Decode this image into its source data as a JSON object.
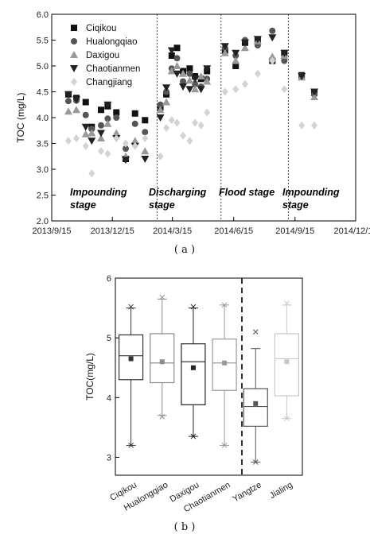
{
  "panel_labels": {
    "a": "( a )",
    "b": "( b )"
  },
  "colors": {
    "Ciqikou": "#111111",
    "Hualongqiao": "#555555",
    "Daxigou": "#999999",
    "Chaotianmen": "#222222",
    "Changjiang": "#d3d3d3"
  },
  "chart_data": [
    {
      "type": "scatter",
      "title": "",
      "xlabel": "",
      "ylabel": "TOC (mg/L)",
      "ylim": [
        2.0,
        6.0
      ],
      "yticks": [
        "2.0",
        "2.5",
        "3.0",
        "3.5",
        "4.0",
        "4.5",
        "5.0",
        "5.5",
        "6.0"
      ],
      "xlim": [
        "2013-09-15",
        "2014-12-15"
      ],
      "xticks": [
        "2013/9/15",
        "2013/12/15",
        "2014/3/15",
        "2014/6/15",
        "2014/9/15",
        "2014/12/15"
      ],
      "grid": false,
      "legend_position": "top-left",
      "stage_dividers": [
        "2014-02-20",
        "2014-05-27",
        "2014-09-05"
      ],
      "stages": [
        {
          "line1": "Impounding",
          "line2": "stage"
        },
        {
          "line1": "Discharging",
          "line2": "stage"
        },
        {
          "line1": "Flood stage",
          "line2": ""
        },
        {
          "line1": "Impounding",
          "line2": "stage"
        }
      ],
      "series": [
        {
          "name": "Ciqikou",
          "marker": "square",
          "points": [
            [
              "2013-10-10",
              4.45
            ],
            [
              "2013-10-22",
              4.38
            ],
            [
              "2013-11-05",
              4.3
            ],
            [
              "2013-11-14",
              3.82
            ],
            [
              "2013-11-28",
              4.15
            ],
            [
              "2013-12-08",
              4.22
            ],
            [
              "2013-12-21",
              4.1
            ],
            [
              "2014-01-04",
              3.2
            ],
            [
              "2014-01-18",
              4.08
            ],
            [
              "2014-02-02",
              3.95
            ],
            [
              "2014-02-25",
              4.2
            ],
            [
              "2014-03-06",
              4.45
            ],
            [
              "2014-03-14",
              5.2
            ],
            [
              "2014-03-22",
              5.35
            ],
            [
              "2014-03-31",
              4.9
            ],
            [
              "2014-04-10",
              4.95
            ],
            [
              "2014-04-18",
              4.8
            ],
            [
              "2014-04-27",
              4.75
            ],
            [
              "2014-05-06",
              4.9
            ],
            [
              "2014-06-02",
              5.3
            ],
            [
              "2014-06-18",
              5.0
            ],
            [
              "2014-07-02",
              5.45
            ],
            [
              "2014-07-21",
              5.5
            ],
            [
              "2014-08-12",
              5.1
            ],
            [
              "2014-08-30",
              5.25
            ],
            [
              "2014-09-25",
              4.82
            ],
            [
              "2014-10-14",
              4.48
            ]
          ]
        },
        {
          "name": "Hualongqiao",
          "marker": "circle",
          "points": [
            [
              "2013-10-10",
              4.32
            ],
            [
              "2013-10-22",
              4.33
            ],
            [
              "2013-11-05",
              4.05
            ],
            [
              "2013-11-14",
              3.78
            ],
            [
              "2013-11-28",
              3.85
            ],
            [
              "2013-12-08",
              3.98
            ],
            [
              "2013-12-21",
              4.0
            ],
            [
              "2014-01-04",
              3.4
            ],
            [
              "2014-01-18",
              3.88
            ],
            [
              "2014-02-02",
              3.72
            ],
            [
              "2014-02-25",
              4.25
            ],
            [
              "2014-03-06",
              4.5
            ],
            [
              "2014-03-14",
              4.95
            ],
            [
              "2014-03-22",
              5.15
            ],
            [
              "2014-03-31",
              4.7
            ],
            [
              "2014-04-10",
              4.85
            ],
            [
              "2014-04-18",
              4.65
            ],
            [
              "2014-04-27",
              4.6
            ],
            [
              "2014-05-06",
              4.75
            ],
            [
              "2014-06-02",
              5.35
            ],
            [
              "2014-06-18",
              5.2
            ],
            [
              "2014-07-02",
              5.5
            ],
            [
              "2014-07-21",
              5.4
            ],
            [
              "2014-08-12",
              5.68
            ],
            [
              "2014-08-30",
              5.1
            ],
            [
              "2014-09-25",
              4.8
            ],
            [
              "2014-10-14",
              4.45
            ]
          ]
        },
        {
          "name": "Daxigou",
          "marker": "triangle-up",
          "points": [
            [
              "2013-10-10",
              4.12
            ],
            [
              "2013-10-22",
              4.15
            ],
            [
              "2013-11-05",
              3.68
            ],
            [
              "2013-11-14",
              3.7
            ],
            [
              "2013-11-28",
              3.6
            ],
            [
              "2013-12-08",
              3.88
            ],
            [
              "2013-12-21",
              3.7
            ],
            [
              "2014-01-04",
              3.25
            ],
            [
              "2014-01-18",
              3.55
            ],
            [
              "2014-02-02",
              3.35
            ],
            [
              "2014-02-25",
              4.15
            ],
            [
              "2014-03-06",
              4.3
            ],
            [
              "2014-03-14",
              4.9
            ],
            [
              "2014-03-22",
              5.0
            ],
            [
              "2014-03-31",
              4.85
            ],
            [
              "2014-04-10",
              4.72
            ],
            [
              "2014-04-18",
              4.55
            ],
            [
              "2014-04-27",
              4.8
            ],
            [
              "2014-05-06",
              4.7
            ],
            [
              "2014-06-02",
              5.25
            ],
            [
              "2014-06-18",
              5.1
            ],
            [
              "2014-07-02",
              5.35
            ],
            [
              "2014-07-21",
              5.48
            ],
            [
              "2014-08-12",
              5.18
            ],
            [
              "2014-08-30",
              5.2
            ],
            [
              "2014-09-25",
              4.78
            ],
            [
              "2014-10-14",
              4.4
            ]
          ]
        },
        {
          "name": "Chaotianmen",
          "marker": "triangle-down",
          "points": [
            [
              "2013-10-10",
              4.45
            ],
            [
              "2013-10-22",
              4.35
            ],
            [
              "2013-11-05",
              3.82
            ],
            [
              "2013-11-14",
              3.55
            ],
            [
              "2013-11-28",
              3.7
            ],
            [
              "2013-12-08",
              4.25
            ],
            [
              "2013-12-21",
              3.6
            ],
            [
              "2014-01-04",
              3.18
            ],
            [
              "2014-01-18",
              3.45
            ],
            [
              "2014-02-02",
              3.2
            ],
            [
              "2014-02-25",
              4.0
            ],
            [
              "2014-03-06",
              4.58
            ],
            [
              "2014-03-14",
              5.3
            ],
            [
              "2014-03-22",
              4.85
            ],
            [
              "2014-03-31",
              4.6
            ],
            [
              "2014-04-10",
              4.55
            ],
            [
              "2014-04-18",
              4.75
            ],
            [
              "2014-04-27",
              4.55
            ],
            [
              "2014-05-06",
              4.95
            ],
            [
              "2014-06-02",
              5.38
            ],
            [
              "2014-06-18",
              5.25
            ],
            [
              "2014-07-02",
              5.45
            ],
            [
              "2014-07-21",
              5.52
            ],
            [
              "2014-08-12",
              5.55
            ],
            [
              "2014-08-30",
              5.25
            ],
            [
              "2014-09-25",
              4.8
            ],
            [
              "2014-10-14",
              4.5
            ]
          ]
        },
        {
          "name": "Changjiang",
          "marker": "diamond",
          "points": [
            [
              "2013-10-10",
              3.55
            ],
            [
              "2013-10-22",
              3.6
            ],
            [
              "2013-11-05",
              3.45
            ],
            [
              "2013-11-14",
              2.92
            ],
            [
              "2013-11-28",
              3.35
            ],
            [
              "2013-12-08",
              3.3
            ],
            [
              "2013-12-21",
              3.6
            ],
            [
              "2014-01-04",
              3.5
            ],
            [
              "2014-01-18",
              3.45
            ],
            [
              "2014-02-02",
              3.6
            ],
            [
              "2014-02-25",
              3.25
            ],
            [
              "2014-03-06",
              3.8
            ],
            [
              "2014-03-14",
              3.95
            ],
            [
              "2014-03-22",
              3.9
            ],
            [
              "2014-03-31",
              3.65
            ],
            [
              "2014-04-10",
              3.55
            ],
            [
              "2014-04-18",
              3.9
            ],
            [
              "2014-04-27",
              3.85
            ],
            [
              "2014-05-06",
              4.1
            ],
            [
              "2014-06-02",
              4.5
            ],
            [
              "2014-06-18",
              4.55
            ],
            [
              "2014-07-02",
              4.65
            ],
            [
              "2014-07-21",
              4.85
            ],
            [
              "2014-08-12",
              5.1
            ],
            [
              "2014-08-30",
              4.55
            ],
            [
              "2014-09-25",
              3.85
            ],
            [
              "2014-10-14",
              3.85
            ]
          ]
        }
      ]
    },
    {
      "type": "box",
      "title": "",
      "xlabel": "",
      "ylabel": "TOC(mg/L)",
      "ylim": [
        2.7,
        6.0
      ],
      "yticks": [
        "3",
        "4",
        "5",
        "6"
      ],
      "grid": false,
      "divider_after_category": "Chaotianmen",
      "categories": [
        "Ciqikou",
        "Hualongqiao",
        "Daxigou",
        "Chaotianmen",
        "Yangtze",
        "Jialing"
      ],
      "series": [
        {
          "name": "Ciqikou",
          "color": "#333333",
          "min": 3.2,
          "q1": 4.3,
          "median": 4.7,
          "q3": 5.05,
          "max": 5.5,
          "mean": 4.65,
          "outliers_high": [
            5.52
          ],
          "outliers_low": [
            3.2
          ]
        },
        {
          "name": "Hualongqiao",
          "color": "#8c8c8c",
          "min": 3.7,
          "q1": 4.25,
          "median": 4.58,
          "q3": 5.07,
          "max": 5.65,
          "mean": 4.6,
          "outliers_high": [
            5.68
          ],
          "outliers_low": [
            3.68
          ]
        },
        {
          "name": "Daxigou",
          "color": "#222222",
          "min": 3.35,
          "q1": 3.88,
          "median": 4.6,
          "q3": 4.9,
          "max": 5.5,
          "mean": 4.5,
          "outliers_high": [
            5.52
          ],
          "outliers_low": [
            3.35
          ]
        },
        {
          "name": "Chaotianmen",
          "color": "#999999",
          "min": 3.2,
          "q1": 4.12,
          "median": 4.58,
          "q3": 4.98,
          "max": 5.55,
          "mean": 4.58,
          "outliers_high": [
            5.55
          ],
          "outliers_low": [
            3.2
          ]
        },
        {
          "name": "Yangtze",
          "color": "#555555",
          "min": 2.92,
          "q1": 3.52,
          "median": 3.85,
          "q3": 4.15,
          "max": 4.82,
          "mean": 3.9,
          "outliers_high": [
            5.1
          ],
          "outliers_low": [
            2.92
          ]
        },
        {
          "name": "Jialing",
          "color": "#c8c8c8",
          "min": 3.65,
          "q1": 4.03,
          "median": 4.65,
          "q3": 5.07,
          "max": 5.55,
          "mean": 4.6,
          "outliers_high": [
            5.58
          ],
          "outliers_low": [
            3.65
          ]
        }
      ]
    }
  ]
}
